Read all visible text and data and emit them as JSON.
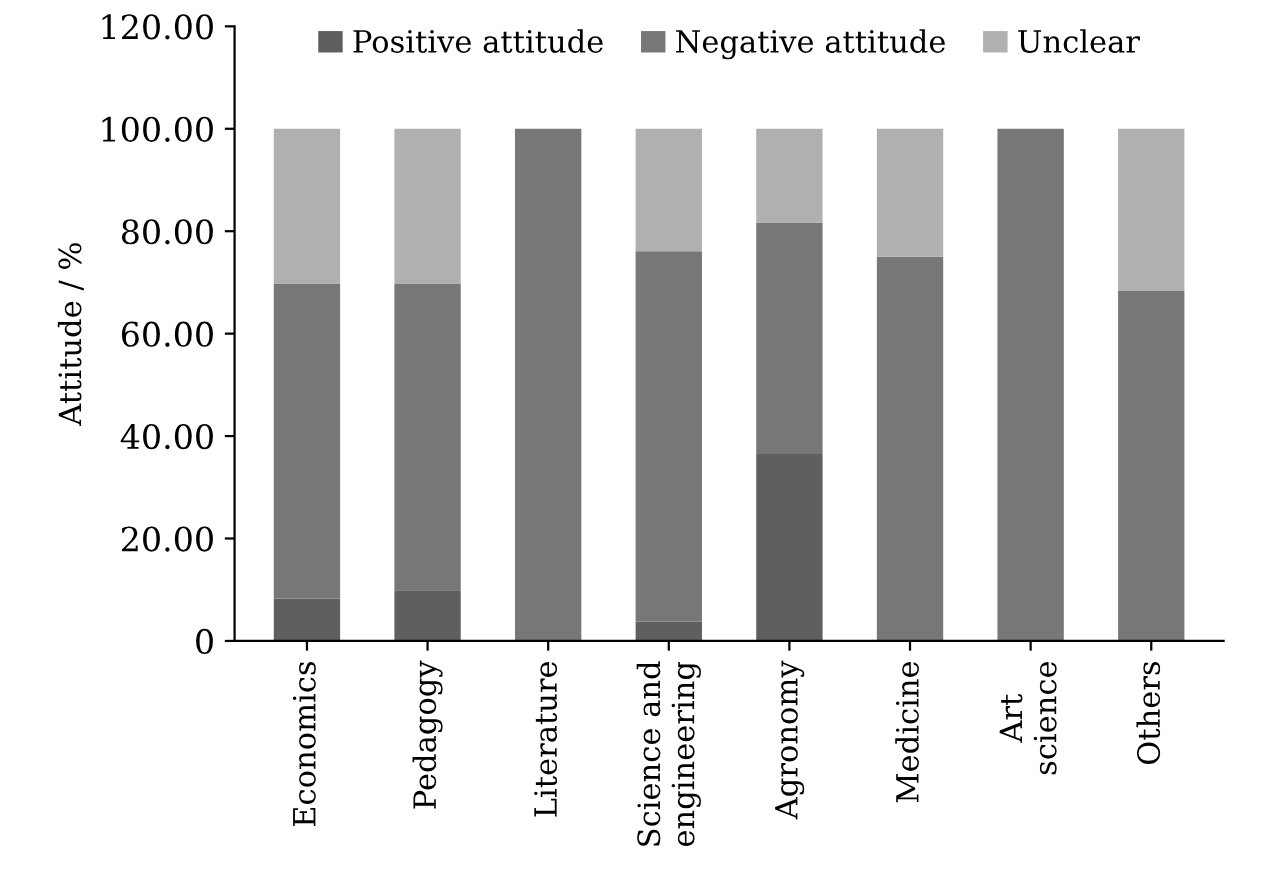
{
  "chart_data": {
    "type": "bar",
    "stacked": true,
    "ylabel": "Attitude / %",
    "categories": [
      "Economics",
      "Pedagogy",
      "Literature",
      "Science and\nengineering",
      "Agronomy",
      "Medicine",
      "Art\nscience",
      "Others"
    ],
    "series": [
      {
        "name": "Positive attitude",
        "color": "#5f5f5f",
        "values": [
          8.3,
          9.9,
          0,
          3.8,
          36.5,
          0,
          0,
          0
        ]
      },
      {
        "name": "Negative attitude",
        "color": "#777777",
        "values": [
          61.5,
          59.9,
          100,
          72.3,
          45.2,
          75,
          100,
          68.4
        ]
      },
      {
        "name": "Unclear",
        "color": "#b0b0b0",
        "values": [
          30.2,
          30.2,
          0,
          23.9,
          18.3,
          25,
          0,
          31.6
        ]
      }
    ],
    "ylim": [
      0,
      120
    ],
    "yticks": [
      {
        "value": 0,
        "label": "0"
      },
      {
        "value": 20,
        "label": "20.00"
      },
      {
        "value": 40,
        "label": "40.00"
      },
      {
        "value": 60,
        "label": "60.00"
      },
      {
        "value": 80,
        "label": "80.00"
      },
      {
        "value": 100,
        "label": "100.00"
      },
      {
        "value": 120,
        "label": "120.00"
      }
    ],
    "grid": false,
    "legend": "top"
  }
}
